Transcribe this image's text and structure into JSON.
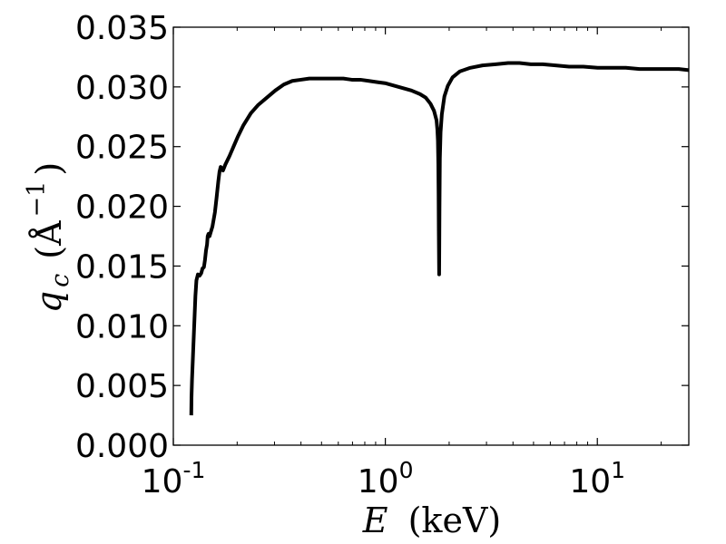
{
  "chart_data": {
    "type": "line",
    "title": "",
    "xlabel": {
      "symbol": "E",
      "unit": "(keV)"
    },
    "ylabel": {
      "symbol": "q",
      "subscript": "c",
      "unit_open": "(Å",
      "unit_exp": "−1",
      "unit_close": ")"
    },
    "xscale": "log",
    "xlim": [
      0.1,
      27
    ],
    "ylim": [
      0.0,
      0.035
    ],
    "grid": false,
    "line_color": "#000000",
    "x_ticks": [
      {
        "value": 0.1,
        "base": "10",
        "exp": "-1"
      },
      {
        "value": 1,
        "base": "10",
        "exp": "0"
      },
      {
        "value": 10,
        "base": "10",
        "exp": "1"
      }
    ],
    "y_ticks": [
      {
        "value": 0.0,
        "label": "0.000"
      },
      {
        "value": 0.005,
        "label": "0.005"
      },
      {
        "value": 0.01,
        "label": "0.010"
      },
      {
        "value": 0.015,
        "label": "0.015"
      },
      {
        "value": 0.02,
        "label": "0.020"
      },
      {
        "value": 0.025,
        "label": "0.025"
      },
      {
        "value": 0.03,
        "label": "0.030"
      },
      {
        "value": 0.035,
        "label": "0.035"
      }
    ],
    "series": [
      {
        "points": [
          [
            0.1215,
            0.0025
          ],
          [
            0.1218,
            0.004
          ],
          [
            0.1225,
            0.0055
          ],
          [
            0.1238,
            0.0075
          ],
          [
            0.1251,
            0.0095
          ],
          [
            0.1261,
            0.011
          ],
          [
            0.1271,
            0.0125
          ],
          [
            0.1285,
            0.0138
          ],
          [
            0.1306,
            0.0143
          ],
          [
            0.1331,
            0.0142
          ],
          [
            0.1354,
            0.0144
          ],
          [
            0.1373,
            0.0148
          ],
          [
            0.1394,
            0.0149
          ],
          [
            0.141,
            0.0155
          ],
          [
            0.1426,
            0.0163
          ],
          [
            0.1442,
            0.0168
          ],
          [
            0.1452,
            0.0175
          ],
          [
            0.1465,
            0.0177
          ],
          [
            0.1482,
            0.0175
          ],
          [
            0.1499,
            0.0178
          ],
          [
            0.1529,
            0.0183
          ],
          [
            0.1571,
            0.0195
          ],
          [
            0.1599,
            0.0207
          ],
          [
            0.163,
            0.0221
          ],
          [
            0.1651,
            0.0229
          ],
          [
            0.1672,
            0.0233
          ],
          [
            0.1693,
            0.0232
          ],
          [
            0.1715,
            0.023
          ],
          [
            0.1759,
            0.0235
          ],
          [
            0.1839,
            0.0242
          ],
          [
            0.1923,
            0.025
          ],
          [
            0.2011,
            0.0258
          ],
          [
            0.2142,
            0.0268
          ],
          [
            0.2322,
            0.0278
          ],
          [
            0.2517,
            0.0285
          ],
          [
            0.2761,
            0.0291
          ],
          [
            0.3026,
            0.0297
          ],
          [
            0.3318,
            0.0302
          ],
          [
            0.364,
            0.0305
          ],
          [
            0.3993,
            0.0306
          ],
          [
            0.4379,
            0.0307
          ],
          [
            0.4803,
            0.0307
          ],
          [
            0.5268,
            0.0307
          ],
          [
            0.5777,
            0.0307
          ],
          [
            0.6337,
            0.0307
          ],
          [
            0.695,
            0.0306
          ],
          [
            0.7623,
            0.0306
          ],
          [
            0.8361,
            0.0305
          ],
          [
            0.917,
            0.0304
          ],
          [
            1.006,
            0.0303
          ],
          [
            1.103,
            0.0301
          ],
          [
            1.21,
            0.0299
          ],
          [
            1.327,
            0.0297
          ],
          [
            1.456,
            0.0294
          ],
          [
            1.551,
            0.0291
          ],
          [
            1.632,
            0.0286
          ],
          [
            1.697,
            0.028
          ],
          [
            1.744,
            0.0272
          ],
          [
            1.76,
            0.0264
          ],
          [
            1.77,
            0.0255
          ],
          [
            1.778,
            0.0235
          ],
          [
            1.783,
            0.021
          ],
          [
            1.787,
            0.018
          ],
          [
            1.791,
            0.0158
          ],
          [
            1.794,
            0.0143
          ],
          [
            1.797,
            0.0165
          ],
          [
            1.801,
            0.02
          ],
          [
            1.808,
            0.024
          ],
          [
            1.822,
            0.0262
          ],
          [
            1.847,
            0.0277
          ],
          [
            1.899,
            0.0292
          ],
          [
            1.972,
            0.0301
          ],
          [
            2.075,
            0.0308
          ],
          [
            2.248,
            0.0313
          ],
          [
            2.517,
            0.0316
          ],
          [
            2.875,
            0.0318
          ],
          [
            3.316,
            0.0319
          ],
          [
            3.795,
            0.032
          ],
          [
            4.292,
            0.032
          ],
          [
            4.853,
            0.0319
          ],
          [
            5.532,
            0.0319
          ],
          [
            6.347,
            0.0318
          ],
          [
            7.355,
            0.0317
          ],
          [
            8.59,
            0.0317
          ],
          [
            10.03,
            0.0316
          ],
          [
            11.69,
            0.0316
          ],
          [
            13.63,
            0.0316
          ],
          [
            15.81,
            0.0315
          ],
          [
            18.23,
            0.0315
          ],
          [
            21.01,
            0.0315
          ],
          [
            24.22,
            0.0315
          ],
          [
            27.0,
            0.0314
          ]
        ]
      }
    ]
  }
}
